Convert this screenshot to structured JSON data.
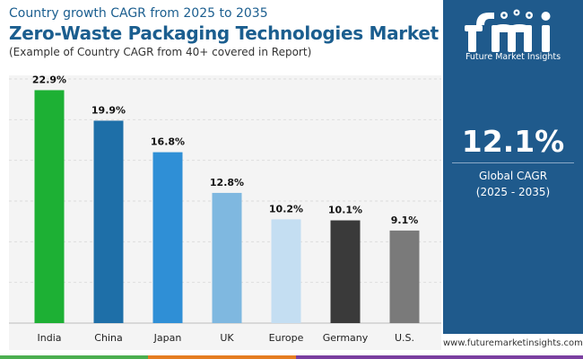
{
  "header": {
    "eyebrow": "Country growth CAGR from 2025 to 2035",
    "title": "Zero-Waste Packaging Technologies Market",
    "subtitle": "(Example of Country CAGR from 40+ covered in Report)"
  },
  "sidebar": {
    "logo_text": "Future Market Insights",
    "kpi_value": "12.1%",
    "kpi_label": "Global CAGR",
    "kpi_period": "(2025 - 2035)"
  },
  "footer": {
    "url": "www.futuremarketinsights.com"
  },
  "colors": {
    "brand_blue": "#1f5a8c",
    "title_blue": "#1b5e8f",
    "footer_stripes": [
      "#4caf50",
      "#e67e22",
      "#7b3fa0"
    ]
  },
  "chart_data": {
    "type": "bar",
    "categories": [
      "India",
      "China",
      "Japan",
      "UK",
      "Europe",
      "Germany",
      "U.S."
    ],
    "values": [
      22.9,
      19.9,
      16.8,
      12.8,
      10.2,
      10.1,
      9.1
    ],
    "data_labels": [
      "22.9%",
      "19.9%",
      "16.8%",
      "12.8%",
      "10.2%",
      "10.1%",
      "9.1%"
    ],
    "bar_colors": [
      "#1db034",
      "#1e6fa8",
      "#2f8fd6",
      "#7fb8e0",
      "#c4def2",
      "#3a3a3a",
      "#7a7a7a"
    ],
    "unit": "%",
    "ylim": [
      0,
      24
    ],
    "grid": true,
    "legend": "none"
  }
}
